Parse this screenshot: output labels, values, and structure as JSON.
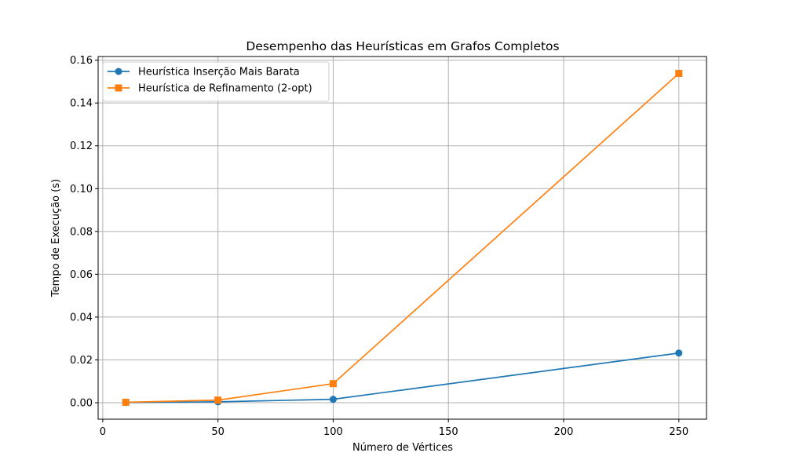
{
  "chart_data": {
    "type": "line",
    "title": "Desempenho das Heurísticas em Grafos Completos",
    "xlabel": "Número de Vértices",
    "ylabel": "Tempo de Execução (s)",
    "x": [
      10,
      50,
      100,
      250
    ],
    "xlim": [
      -2,
      262
    ],
    "ylim": [
      -0.0077,
      0.1617
    ],
    "xticks": [
      0,
      50,
      100,
      150,
      200,
      250
    ],
    "xtick_labels": [
      "0",
      "50",
      "100",
      "150",
      "200",
      "250"
    ],
    "yticks": [
      0.0,
      0.02,
      0.04,
      0.06,
      0.08,
      0.1,
      0.12,
      0.14,
      0.16
    ],
    "ytick_labels": [
      "0.00",
      "0.02",
      "0.04",
      "0.06",
      "0.08",
      "0.10",
      "0.12",
      "0.14",
      "0.16"
    ],
    "grid": true,
    "legend_position": "top-left",
    "series": [
      {
        "name": "Heurística Inserção Mais Barata",
        "values": [
          0.0001,
          0.0004,
          0.0016,
          0.0232
        ],
        "color": "#1f77b4",
        "marker": "circle"
      },
      {
        "name": "Heurística de Refinamento (2-opt)",
        "values": [
          0.0002,
          0.0012,
          0.0089,
          0.1538
        ],
        "color": "#ff7f0e",
        "marker": "square"
      }
    ]
  }
}
